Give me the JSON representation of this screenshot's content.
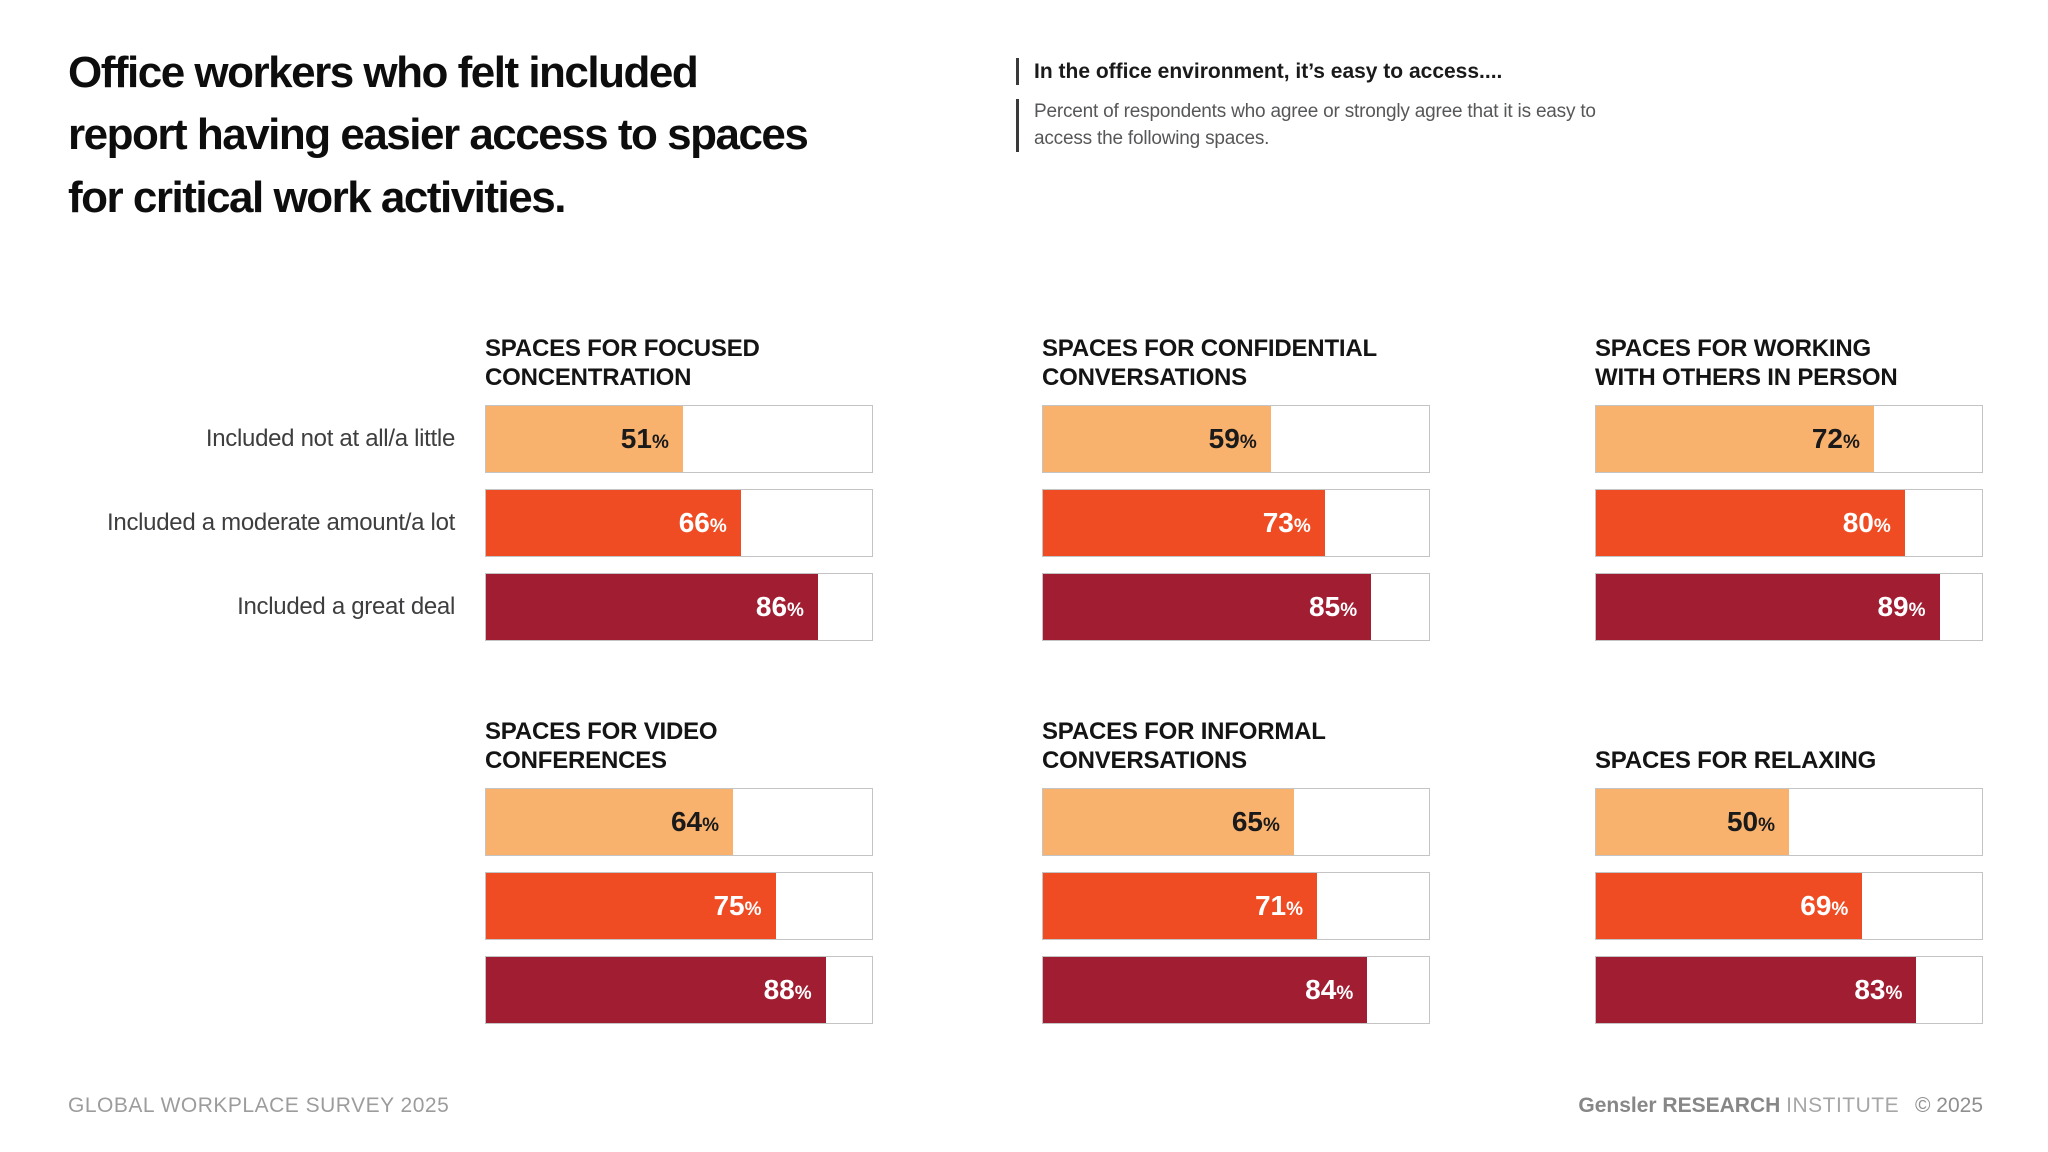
{
  "header": {
    "title": "Office workers who felt included\nreport having easier access to spaces\nfor critical work activities.",
    "callout_heading": "In the office environment, it’s easy to access....",
    "callout_body": "Percent of respondents who agree or strongly agree that it is easy to\naccess the following spaces."
  },
  "chart_data": {
    "type": "bar",
    "orientation": "horizontal",
    "unit": "%",
    "xlim": [
      0,
      100
    ],
    "grid": false,
    "legend_position": "row-labels-left-of-first-panel",
    "categories": [
      "Included not at all/a little",
      "Included a moderate amount/a lot",
      "Included a great deal"
    ],
    "bar_colors": [
      "#F9B26E",
      "#F04C24",
      "#A01D32"
    ],
    "value_label_colors": [
      "#1A1A1A",
      "#FFFFFF",
      "#FFFFFF"
    ],
    "track_border_color": "#C4C4C4",
    "panels": [
      {
        "title": "SPACES FOR FOCUSED\nCONCENTRATION",
        "values": [
          51,
          66,
          86
        ]
      },
      {
        "title": "SPACES FOR CONFIDENTIAL\nCONVERSATIONS",
        "values": [
          59,
          73,
          85
        ]
      },
      {
        "title": "SPACES FOR WORKING\nWITH OTHERS IN PERSON",
        "values": [
          72,
          80,
          89
        ]
      },
      {
        "title": "SPACES FOR VIDEO\nCONFERENCES",
        "values": [
          64,
          75,
          88
        ]
      },
      {
        "title": "SPACES FOR INFORMAL\nCONVERSATIONS",
        "values": [
          65,
          71,
          84
        ]
      },
      {
        "title": "SPACES FOR RELAXING",
        "values": [
          50,
          69,
          83
        ]
      }
    ]
  },
  "footer": {
    "left": "GLOBAL WORKPLACE SURVEY 2025",
    "brand_bold": "Gensler RESEARCH",
    "brand_light": "INSTITUTE",
    "copyright": "© 2025"
  }
}
